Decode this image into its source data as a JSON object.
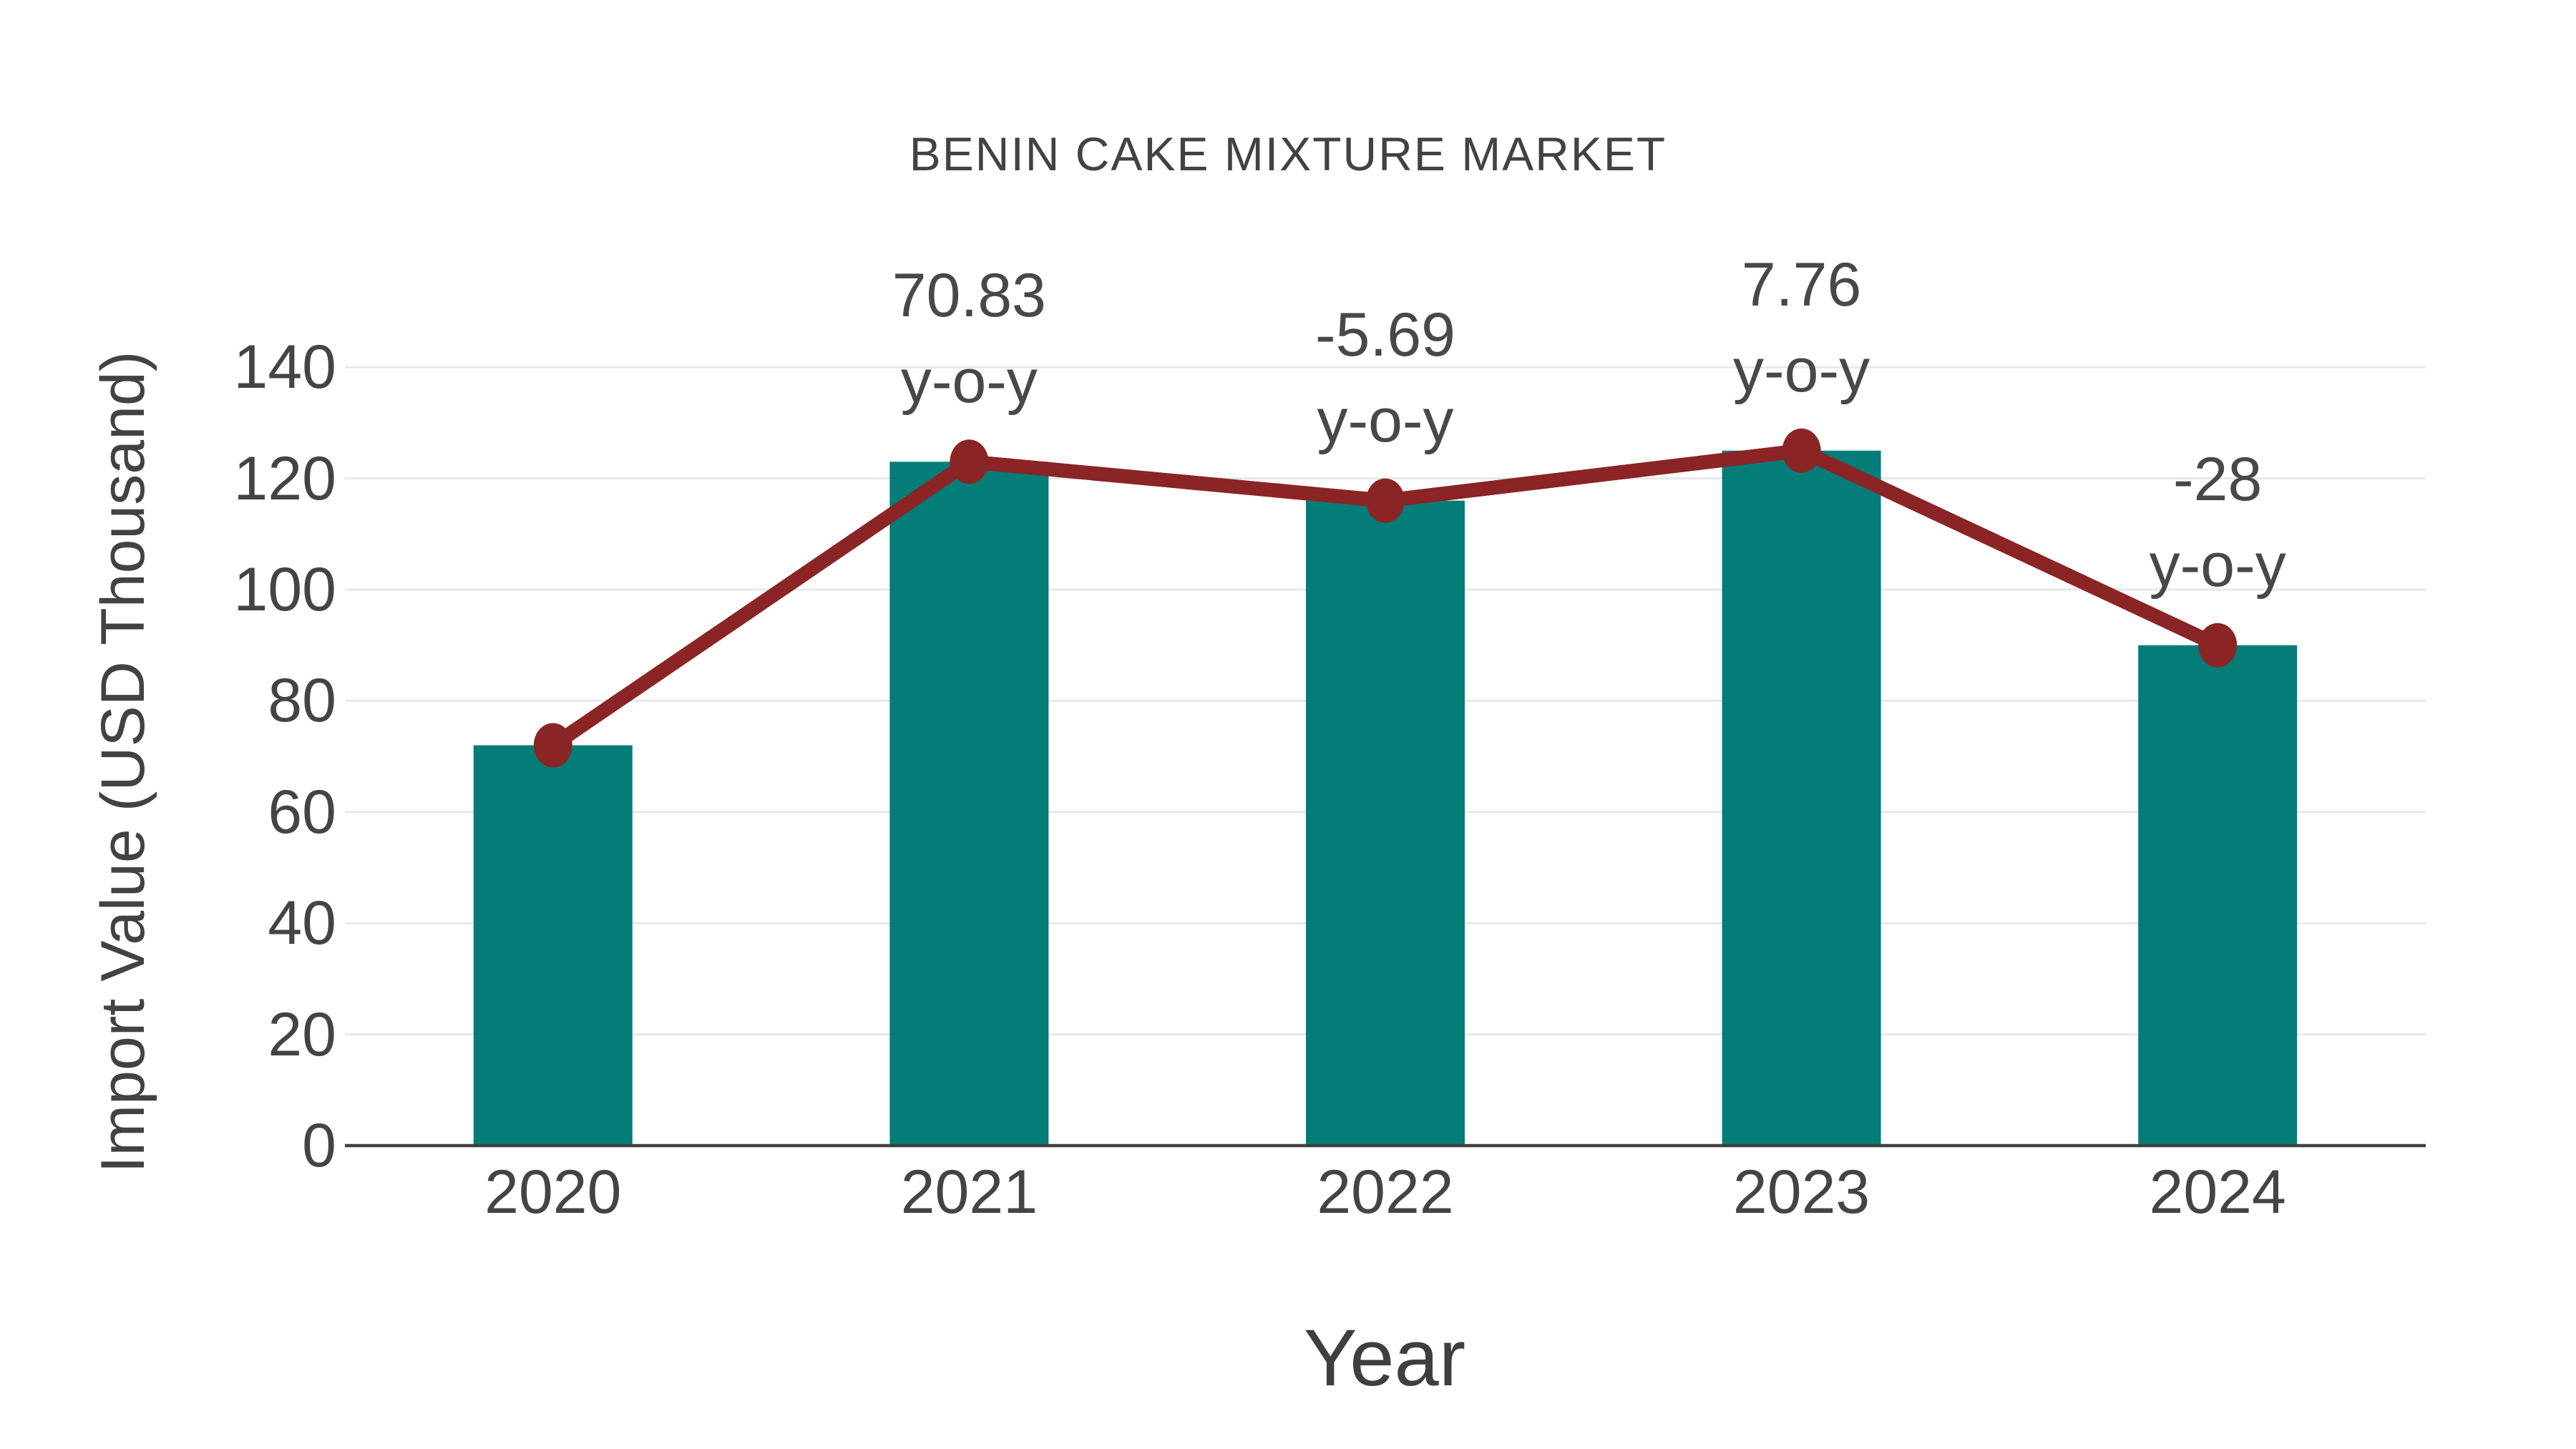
{
  "title": "BENIN CAKE MIXTURE MARKET",
  "colors": {
    "bar": "#047d79",
    "line": "#8b2424",
    "marker": "#8b2424",
    "grid": "#e8e8e8",
    "axis": "#404040",
    "tick_text": "#444444",
    "title_text": "#424242"
  },
  "chart_data": {
    "type": "bar",
    "title": "BENIN CAKE MIXTURE MARKET",
    "xlabel": "Year",
    "ylabel": "Import Value (USD Thousand)",
    "categories": [
      "2020",
      "2021",
      "2022",
      "2023",
      "2024"
    ],
    "series": [
      {
        "name": "import-value-bars",
        "type": "bar",
        "values": [
          72,
          123,
          116,
          125,
          90
        ]
      },
      {
        "name": "import-value-trend-line",
        "type": "line",
        "values": [
          72,
          123,
          116,
          125,
          90
        ]
      }
    ],
    "annotations": [
      {
        "category": "2021",
        "value_label": "70.83",
        "sub_label": "y-o-y"
      },
      {
        "category": "2022",
        "value_label": "-5.69",
        "sub_label": "y-o-y"
      },
      {
        "category": "2023",
        "value_label": "7.76",
        "sub_label": "y-o-y"
      },
      {
        "category": "2024",
        "value_label": "-28",
        "sub_label": "y-o-y"
      }
    ],
    "ylim": [
      0,
      140
    ],
    "yticks": [
      0,
      20,
      40,
      60,
      80,
      100,
      120,
      140
    ],
    "grid": true,
    "legend": false
  }
}
